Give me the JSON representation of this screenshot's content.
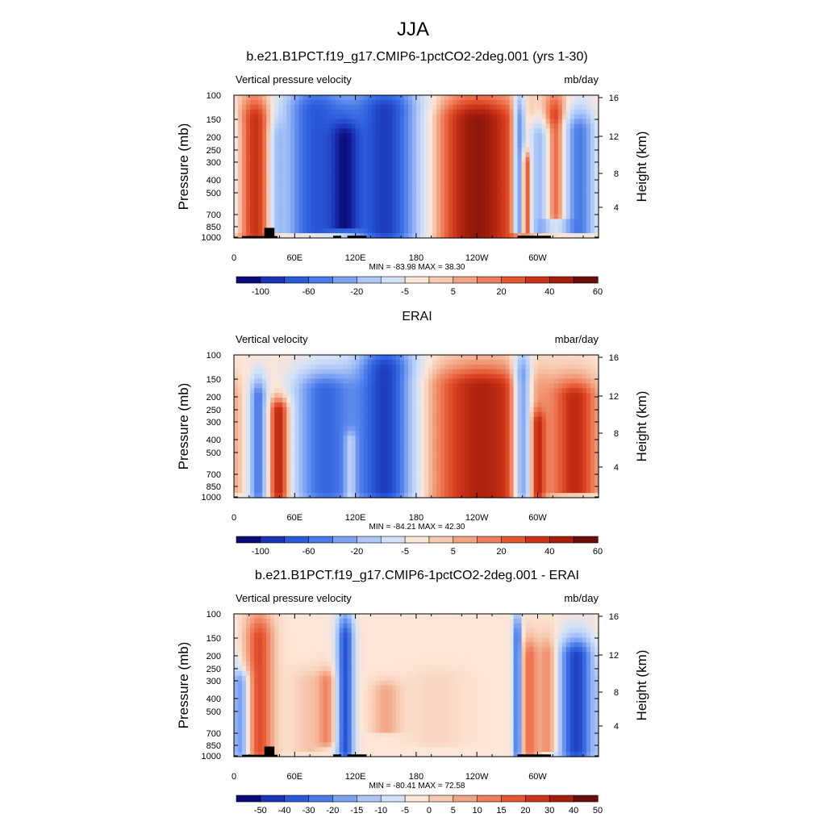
{
  "figure_title": "JJA",
  "chart_data": [
    {
      "type": "heatmap",
      "title": "b.e21.B1PCT.f19_g17.CMIP6-1pctCO2-2deg.001 (yrs 1-30)",
      "left_label": "Vertical pressure velocity",
      "units": "mb/day",
      "ylabel": "Pressure (mb)",
      "y2label": "Height (km)",
      "xticks": [
        "0",
        "60E",
        "120E",
        "180",
        "120W",
        "60W"
      ],
      "yticks": [
        "100",
        "150",
        "200",
        "250",
        "300",
        "400",
        "500",
        "700",
        "850",
        "1000"
      ],
      "y2ticks": [
        "16",
        "12",
        "8",
        "4"
      ],
      "stats": "MIN = -83.98  MAX =  38.30",
      "colorbar_labels": [
        "-100",
        "-60",
        "-20",
        "-5",
        "5",
        "20",
        "40",
        "60"
      ],
      "colorbar_colors": [
        "#0a0a79",
        "#1a34b6",
        "#2b5bdb",
        "#4a7be8",
        "#7ea2f2",
        "#aec7f7",
        "#d3e2f8",
        "#fde6d8",
        "#f7c9b0",
        "#f2a584",
        "#ee7e5c",
        "#e55732",
        "#cc3418",
        "#a61d0c",
        "#6b0e08"
      ],
      "xlim": [
        0,
        360
      ],
      "ylim": [
        1000,
        100
      ],
      "vmin": -83.98,
      "vmax": 38.3,
      "features": [
        {
          "lon": 22,
          "w": 12,
          "amp": 30,
          "pmin": 150,
          "pmax": 950
        },
        {
          "lon": 42,
          "w": 5,
          "amp": -20,
          "pmin": 200,
          "pmax": 900
        },
        {
          "lon": 80,
          "w": 22,
          "amp": -60,
          "pmin": 130,
          "pmax": 900
        },
        {
          "lon": 110,
          "w": 10,
          "amp": -40,
          "pmin": 200,
          "pmax": 850
        },
        {
          "lon": 150,
          "w": 25,
          "amp": -70,
          "pmin": 130,
          "pmax": 950
        },
        {
          "lon": 240,
          "w": 35,
          "amp": 35,
          "pmin": 150,
          "pmax": 960
        },
        {
          "lon": 282,
          "w": 4,
          "amp": -55,
          "pmin": 150,
          "pmax": 900
        },
        {
          "lon": 288,
          "w": 3,
          "amp": 35,
          "pmin": 300,
          "pmax": 900
        },
        {
          "lon": 302,
          "w": 8,
          "amp": -40,
          "pmin": 200,
          "pmax": 900
        },
        {
          "lon": 318,
          "w": 9,
          "amp": 30,
          "pmin": 150,
          "pmax": 700
        },
        {
          "lon": 340,
          "w": 12,
          "amp": -50,
          "pmin": 180,
          "pmax": 900
        }
      ],
      "terrain": [
        {
          "lon1": 8,
          "lon2": 43,
          "p": 970
        },
        {
          "lon1": 30,
          "lon2": 40,
          "p": 850
        },
        {
          "lon1": 98,
          "lon2": 106,
          "p": 965
        },
        {
          "lon1": 112,
          "lon2": 131,
          "p": 965
        },
        {
          "lon1": 280,
          "lon2": 313,
          "p": 965
        }
      ]
    },
    {
      "type": "heatmap",
      "title": "ERAI",
      "left_label": "Vertical velocity",
      "units": "mbar/day",
      "ylabel": "Pressure (mb)",
      "y2label": "Height (km)",
      "xticks": [
        "0",
        "60E",
        "120E",
        "180",
        "120W",
        "60W"
      ],
      "yticks": [
        "100",
        "150",
        "200",
        "250",
        "300",
        "400",
        "500",
        "700",
        "850",
        "1000"
      ],
      "y2ticks": [
        "16",
        "12",
        "8",
        "4"
      ],
      "stats": "MIN = -84.21  MAX =  42.30",
      "colorbar_labels": [
        "-100",
        "-60",
        "-20",
        "-5",
        "5",
        "20",
        "40",
        "60"
      ],
      "colorbar_colors": [
        "#0a0a79",
        "#1a34b6",
        "#2b5bdb",
        "#4a7be8",
        "#7ea2f2",
        "#aec7f7",
        "#d3e2f8",
        "#fde6d8",
        "#f7c9b0",
        "#f2a584",
        "#ee7e5c",
        "#e55732",
        "#cc3418",
        "#a61d0c",
        "#6b0e08"
      ],
      "xlim": [
        0,
        360
      ],
      "ylim": [
        1000,
        100
      ],
      "vmin": -84.21,
      "vmax": 42.3,
      "features": [
        {
          "lon": 24,
          "w": 6,
          "amp": -50,
          "pmin": 200,
          "pmax": 950
        },
        {
          "lon": 45,
          "w": 8,
          "amp": 40,
          "pmin": 250,
          "pmax": 950
        },
        {
          "lon": 90,
          "w": 22,
          "amp": -55,
          "pmin": 180,
          "pmax": 950
        },
        {
          "lon": 115,
          "w": 4,
          "amp": 25,
          "pmin": 400,
          "pmax": 980
        },
        {
          "lon": 150,
          "w": 20,
          "amp": -70,
          "pmin": 130,
          "pmax": 950
        },
        {
          "lon": 245,
          "w": 40,
          "amp": 35,
          "pmin": 170,
          "pmax": 980
        },
        {
          "lon": 285,
          "w": 6,
          "amp": -55,
          "pmin": 150,
          "pmax": 950
        },
        {
          "lon": 300,
          "w": 5,
          "amp": 20,
          "pmin": 300,
          "pmax": 950
        },
        {
          "lon": 338,
          "w": 16,
          "amp": 30,
          "pmin": 200,
          "pmax": 900
        }
      ],
      "terrain": []
    },
    {
      "type": "heatmap",
      "title": "b.e21.B1PCT.f19_g17.CMIP6-1pctCO2-2deg.001 - ERAI",
      "left_label": "Vertical pressure velocity",
      "units": "mb/day",
      "ylabel": "Pressure (mb)",
      "y2label": "Height (km)",
      "xticks": [
        "0",
        "60E",
        "120E",
        "180",
        "120W",
        "60W"
      ],
      "yticks": [
        "100",
        "150",
        "200",
        "250",
        "300",
        "400",
        "500",
        "700",
        "850",
        "1000"
      ],
      "y2ticks": [
        "16",
        "12",
        "8",
        "4"
      ],
      "stats": "MIN = -80.41  MAX =  72.58",
      "colorbar_labels": [
        "-50",
        "-40",
        "-30",
        "-20",
        "-15",
        "-10",
        "-5",
        "0",
        "5",
        "10",
        "15",
        "20",
        "30",
        "40",
        "50"
      ],
      "colorbar_colors": [
        "#0a0a79",
        "#1a34b6",
        "#2b5bdb",
        "#4a7be8",
        "#7ea2f2",
        "#aec7f7",
        "#d3e2f8",
        "#fde6d8",
        "#f7c9b0",
        "#f2a584",
        "#ee7e5c",
        "#e55732",
        "#cc3418",
        "#a61d0c",
        "#6b0e08"
      ],
      "xlim": [
        0,
        360
      ],
      "ylim": [
        1000,
        100
      ],
      "vmin": -80.41,
      "vmax": 72.58,
      "features": [
        {
          "lon": 8,
          "w": 6,
          "amp": -40,
          "pmin": 300,
          "pmax": 950
        },
        {
          "lon": 25,
          "w": 10,
          "amp": 45,
          "pmin": 150,
          "pmax": 950
        },
        {
          "lon": 75,
          "w": 12,
          "amp": 12,
          "pmin": 300,
          "pmax": 900
        },
        {
          "lon": 92,
          "w": 6,
          "amp": 25,
          "pmin": 300,
          "pmax": 800
        },
        {
          "lon": 110,
          "w": 6,
          "amp": -60,
          "pmin": 150,
          "pmax": 950
        },
        {
          "lon": 150,
          "w": 10,
          "amp": 20,
          "pmin": 350,
          "pmax": 650
        },
        {
          "lon": 200,
          "w": 20,
          "amp": 6,
          "pmin": 300,
          "pmax": 800
        },
        {
          "lon": 280,
          "w": 3,
          "amp": -55,
          "pmin": 150,
          "pmax": 950
        },
        {
          "lon": 292,
          "w": 6,
          "amp": 35,
          "pmin": 200,
          "pmax": 950
        },
        {
          "lon": 310,
          "w": 6,
          "amp": 30,
          "pmin": 200,
          "pmax": 900
        },
        {
          "lon": 338,
          "w": 12,
          "amp": -65,
          "pmin": 200,
          "pmax": 950
        }
      ],
      "terrain": [
        {
          "lon1": 8,
          "lon2": 43,
          "p": 970
        },
        {
          "lon1": 30,
          "lon2": 40,
          "p": 850
        },
        {
          "lon1": 98,
          "lon2": 106,
          "p": 965
        },
        {
          "lon1": 112,
          "lon2": 131,
          "p": 965
        },
        {
          "lon1": 280,
          "lon2": 313,
          "p": 965
        }
      ]
    }
  ]
}
